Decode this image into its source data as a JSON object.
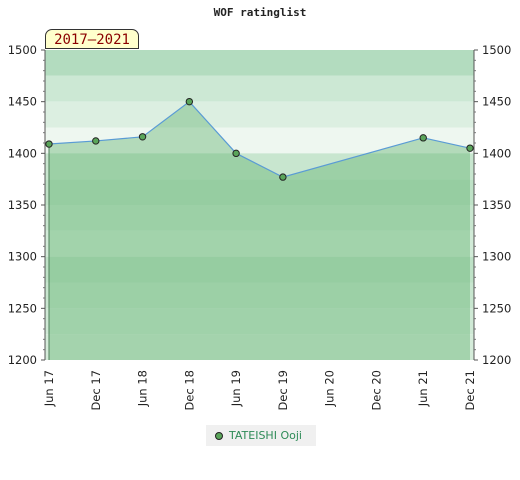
{
  "chart_data": {
    "type": "line",
    "title": "WOF ratinglist",
    "period_label": "2017–2021",
    "x_tick_labels": [
      "Jun 17",
      "Dec 17",
      "Jun 18",
      "Dec 18",
      "Jun 19",
      "Dec 19",
      "Jun 20",
      "Dec 20",
      "Jun 21",
      "Dec 21"
    ],
    "y_ticks": [
      1200,
      1250,
      1300,
      1350,
      1400,
      1450,
      1500
    ],
    "ylim": [
      1200,
      1500
    ],
    "series": [
      {
        "name": "TATEISHI Ooji",
        "points": [
          {
            "x": 0.0,
            "y": 1409
          },
          {
            "x": 1.0,
            "y": 1412
          },
          {
            "x": 2.0,
            "y": 1416
          },
          {
            "x": 3.0,
            "y": 1450
          },
          {
            "x": 4.0,
            "y": 1400
          },
          {
            "x": 5.0,
            "y": 1377
          },
          {
            "x": 8.0,
            "y": 1415
          },
          {
            "x": 9.0,
            "y": 1405
          }
        ]
      }
    ],
    "bands": [
      {
        "from": 1475,
        "to": 1500,
        "color": "#b3dcbf"
      },
      {
        "from": 1450,
        "to": 1475,
        "color": "#cce8d4"
      },
      {
        "from": 1425,
        "to": 1450,
        "color": "#dcefe1"
      },
      {
        "from": 1400,
        "to": 1425,
        "color": "#eef7f0"
      },
      {
        "from": 1375,
        "to": 1400,
        "color": "#c8e6cf"
      },
      {
        "from": 1350,
        "to": 1375,
        "color": "#bfe2c7"
      },
      {
        "from": 1325,
        "to": 1350,
        "color": "#c8e6cf"
      },
      {
        "from": 1300,
        "to": 1325,
        "color": "#d2ebd8"
      },
      {
        "from": 1275,
        "to": 1300,
        "color": "#bfe2c7"
      },
      {
        "from": 1250,
        "to": 1275,
        "color": "#c8e6cf"
      },
      {
        "from": 1225,
        "to": 1250,
        "color": "#cfe9d5"
      },
      {
        "from": 1200,
        "to": 1225,
        "color": "#d5ecda"
      }
    ],
    "colors": {
      "fill": "#5aaf6a",
      "line": "#5a9bd5",
      "marker": "#5aa55a",
      "band_top": "#b3dcbf"
    },
    "legend_placement": "bottom-center",
    "grid": false
  }
}
